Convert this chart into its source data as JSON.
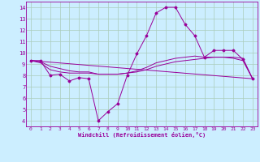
{
  "xlabel": "Windchill (Refroidissement éolien,°C)",
  "bg_color": "#cceeff",
  "line_color": "#990099",
  "grid_color": "#aaccbb",
  "xlim": [
    -0.5,
    23.5
  ],
  "ylim": [
    3.5,
    14.5
  ],
  "yticks": [
    4,
    5,
    6,
    7,
    8,
    9,
    10,
    11,
    12,
    13,
    14
  ],
  "xticks": [
    0,
    1,
    2,
    3,
    4,
    5,
    6,
    7,
    8,
    9,
    10,
    11,
    12,
    13,
    14,
    15,
    16,
    17,
    18,
    19,
    20,
    21,
    22,
    23
  ],
  "series1_x": [
    0,
    1,
    2,
    3,
    4,
    5,
    6,
    7,
    8,
    9,
    10,
    11,
    12,
    13,
    14,
    15,
    16,
    17,
    18,
    19,
    20,
    21,
    22,
    23
  ],
  "series1_y": [
    9.3,
    9.3,
    8.0,
    8.1,
    7.5,
    7.8,
    7.7,
    4.0,
    4.8,
    5.5,
    8.0,
    9.9,
    11.5,
    13.5,
    14.0,
    14.0,
    12.5,
    11.5,
    9.6,
    10.2,
    10.2,
    10.2,
    9.4,
    7.7
  ],
  "series2_x": [
    0,
    1,
    2,
    3,
    4,
    5,
    6,
    7,
    8,
    9,
    10,
    11,
    12,
    13,
    14,
    15,
    16,
    17,
    18,
    19,
    20,
    21,
    22,
    23
  ],
  "series2_y": [
    9.3,
    9.2,
    8.8,
    8.6,
    8.4,
    8.3,
    8.3,
    8.1,
    8.1,
    8.1,
    8.2,
    8.3,
    8.5,
    8.8,
    9.0,
    9.2,
    9.3,
    9.4,
    9.5,
    9.6,
    9.6,
    9.6,
    9.5,
    7.7
  ],
  "series3_x": [
    0,
    1,
    2,
    3,
    4,
    5,
    6,
    7,
    8,
    9,
    10,
    11,
    12,
    13,
    14,
    15,
    16,
    17,
    18,
    19,
    20,
    21,
    22,
    23
  ],
  "series3_y": [
    9.3,
    9.1,
    8.5,
    8.3,
    8.2,
    8.2,
    8.2,
    8.1,
    8.1,
    8.1,
    8.2,
    8.4,
    8.7,
    9.1,
    9.3,
    9.5,
    9.6,
    9.7,
    9.6,
    9.6,
    9.6,
    9.5,
    9.3,
    7.7
  ],
  "series4_x": [
    0,
    23
  ],
  "series4_y": [
    9.3,
    7.7
  ]
}
